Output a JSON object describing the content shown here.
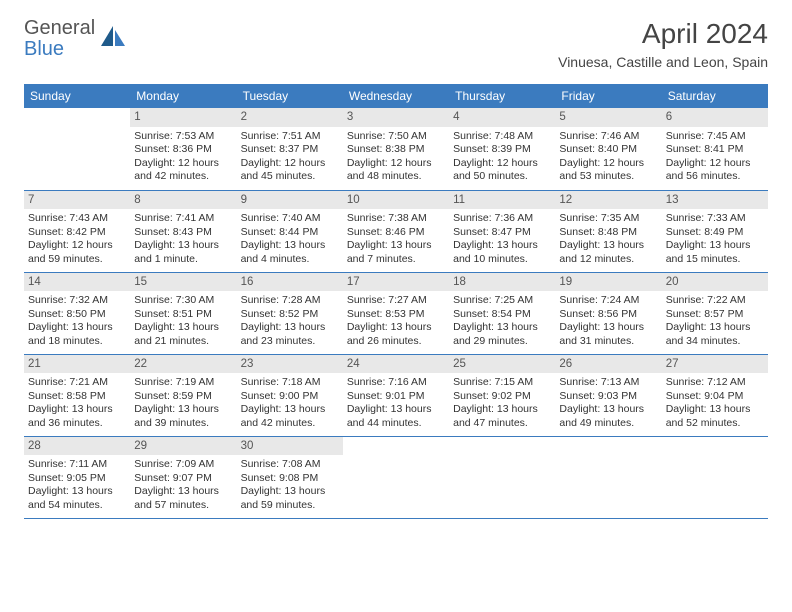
{
  "brand": {
    "text1": "General",
    "text2": "Blue"
  },
  "title": "April 2024",
  "location": "Vinuesa, Castille and Leon, Spain",
  "colors": {
    "header_bg": "#3b7bbf",
    "header_text": "#ffffff",
    "day_num_bg": "#e8e8e8",
    "row_border": "#3b7bbf",
    "body_text": "#333333"
  },
  "weekdays": [
    "Sunday",
    "Monday",
    "Tuesday",
    "Wednesday",
    "Thursday",
    "Friday",
    "Saturday"
  ],
  "grid": [
    [
      null,
      {
        "d": "1",
        "sr": "7:53 AM",
        "ss": "8:36 PM",
        "dl1": "Daylight: 12 hours",
        "dl2": "and 42 minutes."
      },
      {
        "d": "2",
        "sr": "7:51 AM",
        "ss": "8:37 PM",
        "dl1": "Daylight: 12 hours",
        "dl2": "and 45 minutes."
      },
      {
        "d": "3",
        "sr": "7:50 AM",
        "ss": "8:38 PM",
        "dl1": "Daylight: 12 hours",
        "dl2": "and 48 minutes."
      },
      {
        "d": "4",
        "sr": "7:48 AM",
        "ss": "8:39 PM",
        "dl1": "Daylight: 12 hours",
        "dl2": "and 50 minutes."
      },
      {
        "d": "5",
        "sr": "7:46 AM",
        "ss": "8:40 PM",
        "dl1": "Daylight: 12 hours",
        "dl2": "and 53 minutes."
      },
      {
        "d": "6",
        "sr": "7:45 AM",
        "ss": "8:41 PM",
        "dl1": "Daylight: 12 hours",
        "dl2": "and 56 minutes."
      }
    ],
    [
      {
        "d": "7",
        "sr": "7:43 AM",
        "ss": "8:42 PM",
        "dl1": "Daylight: 12 hours",
        "dl2": "and 59 minutes."
      },
      {
        "d": "8",
        "sr": "7:41 AM",
        "ss": "8:43 PM",
        "dl1": "Daylight: 13 hours",
        "dl2": "and 1 minute."
      },
      {
        "d": "9",
        "sr": "7:40 AM",
        "ss": "8:44 PM",
        "dl1": "Daylight: 13 hours",
        "dl2": "and 4 minutes."
      },
      {
        "d": "10",
        "sr": "7:38 AM",
        "ss": "8:46 PM",
        "dl1": "Daylight: 13 hours",
        "dl2": "and 7 minutes."
      },
      {
        "d": "11",
        "sr": "7:36 AM",
        "ss": "8:47 PM",
        "dl1": "Daylight: 13 hours",
        "dl2": "and 10 minutes."
      },
      {
        "d": "12",
        "sr": "7:35 AM",
        "ss": "8:48 PM",
        "dl1": "Daylight: 13 hours",
        "dl2": "and 12 minutes."
      },
      {
        "d": "13",
        "sr": "7:33 AM",
        "ss": "8:49 PM",
        "dl1": "Daylight: 13 hours",
        "dl2": "and 15 minutes."
      }
    ],
    [
      {
        "d": "14",
        "sr": "7:32 AM",
        "ss": "8:50 PM",
        "dl1": "Daylight: 13 hours",
        "dl2": "and 18 minutes."
      },
      {
        "d": "15",
        "sr": "7:30 AM",
        "ss": "8:51 PM",
        "dl1": "Daylight: 13 hours",
        "dl2": "and 21 minutes."
      },
      {
        "d": "16",
        "sr": "7:28 AM",
        "ss": "8:52 PM",
        "dl1": "Daylight: 13 hours",
        "dl2": "and 23 minutes."
      },
      {
        "d": "17",
        "sr": "7:27 AM",
        "ss": "8:53 PM",
        "dl1": "Daylight: 13 hours",
        "dl2": "and 26 minutes."
      },
      {
        "d": "18",
        "sr": "7:25 AM",
        "ss": "8:54 PM",
        "dl1": "Daylight: 13 hours",
        "dl2": "and 29 minutes."
      },
      {
        "d": "19",
        "sr": "7:24 AM",
        "ss": "8:56 PM",
        "dl1": "Daylight: 13 hours",
        "dl2": "and 31 minutes."
      },
      {
        "d": "20",
        "sr": "7:22 AM",
        "ss": "8:57 PM",
        "dl1": "Daylight: 13 hours",
        "dl2": "and 34 minutes."
      }
    ],
    [
      {
        "d": "21",
        "sr": "7:21 AM",
        "ss": "8:58 PM",
        "dl1": "Daylight: 13 hours",
        "dl2": "and 36 minutes."
      },
      {
        "d": "22",
        "sr": "7:19 AM",
        "ss": "8:59 PM",
        "dl1": "Daylight: 13 hours",
        "dl2": "and 39 minutes."
      },
      {
        "d": "23",
        "sr": "7:18 AM",
        "ss": "9:00 PM",
        "dl1": "Daylight: 13 hours",
        "dl2": "and 42 minutes."
      },
      {
        "d": "24",
        "sr": "7:16 AM",
        "ss": "9:01 PM",
        "dl1": "Daylight: 13 hours",
        "dl2": "and 44 minutes."
      },
      {
        "d": "25",
        "sr": "7:15 AM",
        "ss": "9:02 PM",
        "dl1": "Daylight: 13 hours",
        "dl2": "and 47 minutes."
      },
      {
        "d": "26",
        "sr": "7:13 AM",
        "ss": "9:03 PM",
        "dl1": "Daylight: 13 hours",
        "dl2": "and 49 minutes."
      },
      {
        "d": "27",
        "sr": "7:12 AM",
        "ss": "9:04 PM",
        "dl1": "Daylight: 13 hours",
        "dl2": "and 52 minutes."
      }
    ],
    [
      {
        "d": "28",
        "sr": "7:11 AM",
        "ss": "9:05 PM",
        "dl1": "Daylight: 13 hours",
        "dl2": "and 54 minutes."
      },
      {
        "d": "29",
        "sr": "7:09 AM",
        "ss": "9:07 PM",
        "dl1": "Daylight: 13 hours",
        "dl2": "and 57 minutes."
      },
      {
        "d": "30",
        "sr": "7:08 AM",
        "ss": "9:08 PM",
        "dl1": "Daylight: 13 hours",
        "dl2": "and 59 minutes."
      },
      null,
      null,
      null,
      null
    ]
  ]
}
